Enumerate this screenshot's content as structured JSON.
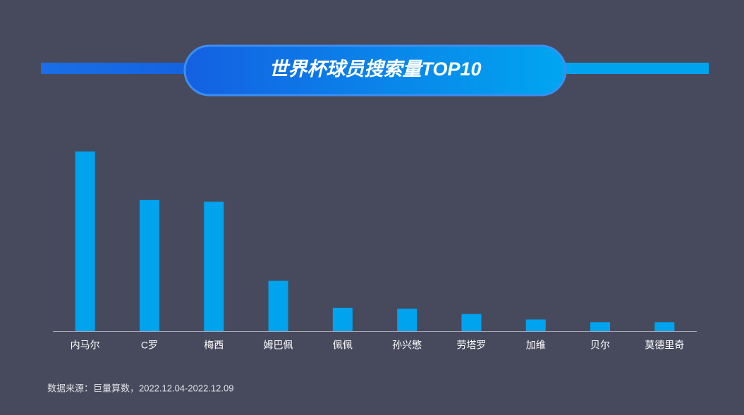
{
  "chart_data": {
    "type": "bar",
    "title": "世界杯球员搜索量TOP10",
    "categories": [
      "内马尔",
      "C罗",
      "梅西",
      "姆巴佩",
      "佩佩",
      "孙兴慜",
      "劳塔罗",
      "加维",
      "贝尔",
      "莫德里奇"
    ],
    "values": [
      100,
      73,
      72,
      28,
      13,
      12.5,
      9.5,
      6.5,
      5,
      5
    ],
    "color": "#00a3ee",
    "ylim": [
      0,
      100
    ],
    "source": "数据来源：巨量算数，2022.12.04-2022.12.09"
  }
}
